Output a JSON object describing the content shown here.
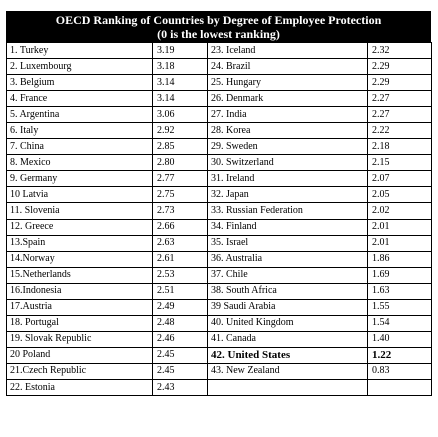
{
  "title_line1": "OECD Ranking of Countries by Degree of Employee Protection",
  "title_line2": "(0 is the lowest ranking)",
  "rows": [
    {
      "left_country": "1. Turkey",
      "left_score": "3.19",
      "right_country": "23. Iceland",
      "right_score": "2.32"
    },
    {
      "left_country": "2. Luxembourg",
      "left_score": "3.18",
      "right_country": "24. Brazil",
      "right_score": "2.29"
    },
    {
      "left_country": "3. Belgium",
      "left_score": "3.14",
      "right_country": "25. Hungary",
      "right_score": "2.29"
    },
    {
      "left_country": "4. France",
      "left_score": "3.14",
      "right_country": "26. Denmark",
      "right_score": "2.27"
    },
    {
      "left_country": "5. Argentina",
      "left_score": "3.06",
      "right_country": "27. India",
      "right_score": "2.27"
    },
    {
      "left_country": "6. Italy",
      "left_score": "2.92",
      "right_country": "28. Korea",
      "right_score": "2.22"
    },
    {
      "left_country": "7. China",
      "left_score": "2.85",
      "right_country": "29. Sweden",
      "right_score": "2.18"
    },
    {
      "left_country": "8. Mexico",
      "left_score": "2.80",
      "right_country": "30. Switzerland",
      "right_score": "2.15"
    },
    {
      "left_country": "9. Germany",
      "left_score": "2.77",
      "right_country": "31. Ireland",
      "right_score": "2.07"
    },
    {
      "left_country": "10 Latvia",
      "left_score": "2.75",
      "right_country": "32. Japan",
      "right_score": "2.05"
    },
    {
      "left_country": "11. Slovenia",
      "left_score": "2.73",
      "right_country": "33. Russian Federation",
      "right_score": "2.02"
    },
    {
      "left_country": "12. Greece",
      "left_score": "2.66",
      "right_country": "34. Finland",
      "right_score": "2.01"
    },
    {
      "left_country": "13.Spain",
      "left_score": "2.63",
      "right_country": "35. Israel",
      "right_score": "2.01"
    },
    {
      "left_country": "14.Norway",
      "left_score": "2.61",
      "right_country": "36. Australia",
      "right_score": "1.86"
    },
    {
      "left_country": "15.Netherlands",
      "left_score": "2.53",
      "right_country": "37. Chile",
      "right_score": "1.69"
    },
    {
      "left_country": "16.Indonesia",
      "left_score": "2.51",
      "right_country": "38. South Africa",
      "right_score": "1.63"
    },
    {
      "left_country": "17.Austria",
      "left_score": "2.49",
      "right_country": "39 Saudi Arabia",
      "right_score": "1.55"
    },
    {
      "left_country": "18. Portugal",
      "left_score": "2.48",
      "right_country": "40. United Kingdom",
      "right_score": "1.54"
    },
    {
      "left_country": "19. Slovak Republic",
      "left_score": "2.46",
      "right_country": "41. Canada",
      "right_score": "1.40"
    },
    {
      "left_country": "20 Poland",
      "left_score": "2.45",
      "right_country": "42. United States",
      "right_score": "1.22"
    },
    {
      "left_country": "21.Czech Republic",
      "left_score": "2.45",
      "right_country": "43. New Zealand",
      "right_score": "0.83"
    },
    {
      "left_country": "22. Estonia",
      "left_score": "2.43",
      "right_country": "",
      "right_score": ""
    }
  ],
  "highlight_row_index": 19
}
